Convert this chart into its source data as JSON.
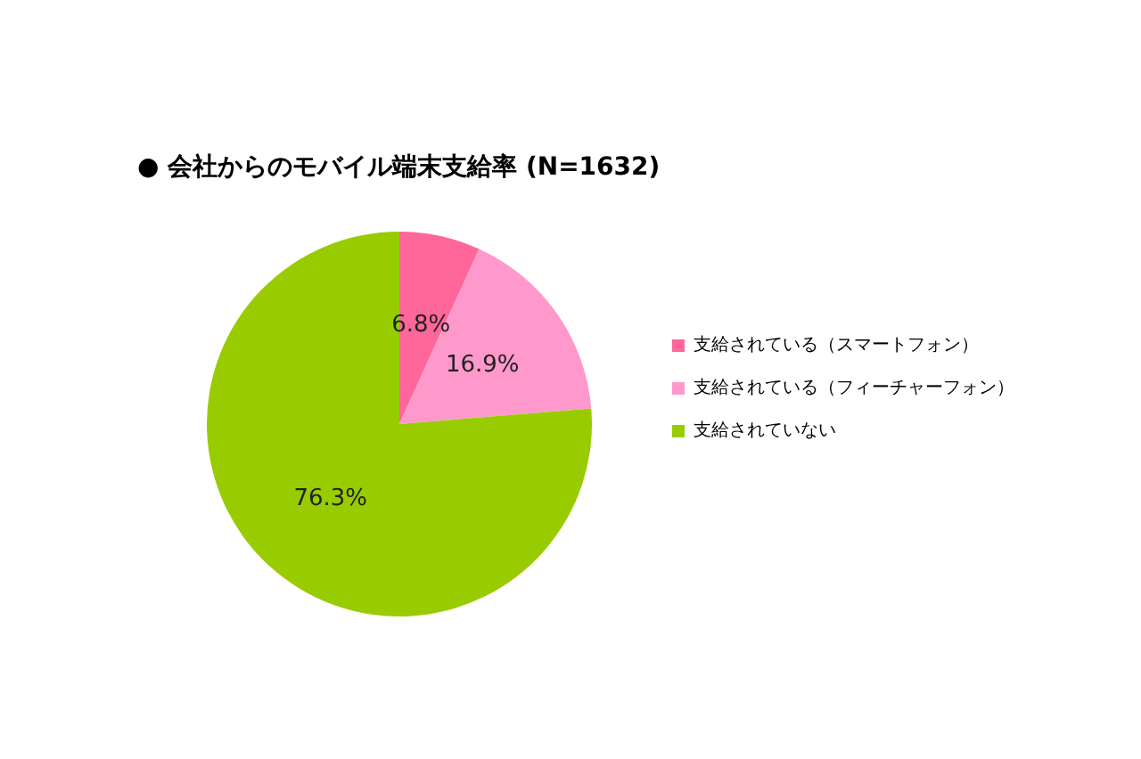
{
  "chart_data": {
    "type": "pie",
    "title": "● 会社からのモバイル端末支給率 (N=1632)",
    "categories": [
      "支給されている（スマートフォン）",
      "支給されている（フィーチャーフォン）",
      "支給されていない"
    ],
    "values": [
      6.8,
      16.9,
      76.3
    ],
    "value_labels": [
      "6.8%",
      "16.9%",
      "76.3%"
    ],
    "colors": [
      "#ff6699",
      "#ff99cc",
      "#99cc00"
    ],
    "legend": "right"
  }
}
